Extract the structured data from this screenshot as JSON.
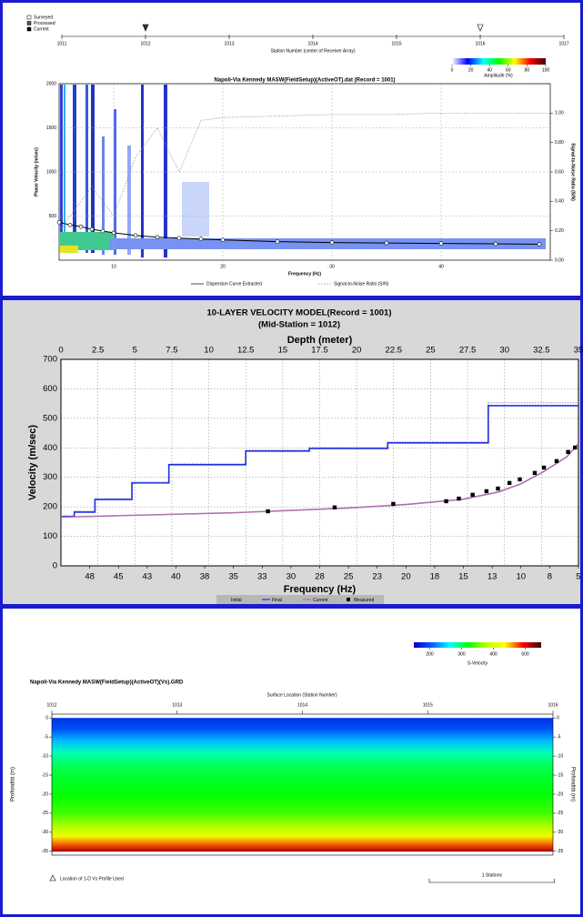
{
  "chart_data": [
    {
      "type": "dispersion",
      "legend": [
        "Surveyed",
        "Processed",
        "Current"
      ],
      "station_axis": {
        "label": "Station Number (center of Receiver Array)",
        "xlim": [
          1011,
          1017
        ],
        "xticks": [
          1011,
          1012,
          1013,
          1014,
          1015,
          1016,
          1017
        ],
        "processed_stations": [
          1012
        ],
        "surveyed_stations": [
          1016
        ]
      },
      "colorbar": {
        "label": "Amplitude (%)",
        "lim": [
          0,
          100
        ],
        "ticks": [
          0,
          20,
          40,
          60,
          80,
          100
        ],
        "colors": [
          "#ffffff",
          "#0000ff",
          "#00ffff",
          "#00ff00",
          "#ffff00",
          "#ff0000",
          "#400000"
        ]
      },
      "title": "Napoli-Via Kennedy MASW(FieldSetup)(ActiveOT).dat (Record = 1001)",
      "xlabel": "Frequency (Hz)",
      "ylabel": "Phase Velocity (m/sec)",
      "y2label": "Signal-to-Noise Ratio (S/N)",
      "xlim": [
        5,
        50
      ],
      "xticks": [
        10,
        20,
        30,
        40
      ],
      "ylim": [
        0,
        2000
      ],
      "yticks": [
        500,
        1000,
        1500,
        2000
      ],
      "y2lim": [
        0,
        1.2
      ],
      "y2ticks": [
        {
          "value": 0,
          "label": "0.00"
        },
        {
          "value": 0.2,
          "label": "0.20"
        },
        {
          "value": 0.4,
          "label": "0.40"
        },
        {
          "value": 0.6,
          "label": "0.60"
        },
        {
          "value": 0.8,
          "label": "0.80"
        },
        {
          "value": 1,
          "label": "1.00"
        }
      ],
      "grid": true,
      "series": [
        {
          "name": "Dispersion Curve Extracted",
          "color": "#000000",
          "x": [
            5,
            6,
            7,
            8,
            9,
            10,
            12,
            14,
            16,
            18,
            20,
            25,
            30,
            35,
            40,
            45,
            49
          ],
          "values": [
            430,
            400,
            380,
            350,
            330,
            310,
            280,
            260,
            250,
            240,
            230,
            210,
            200,
            195,
            190,
            185,
            180
          ]
        },
        {
          "name": "Signal-to-Noise Ratio (S/N)",
          "color": "#909090",
          "axis": "y2",
          "x": [
            5,
            8,
            10,
            12,
            14,
            16,
            18,
            20,
            25,
            30,
            35,
            40,
            45,
            50
          ],
          "values": [
            0.2,
            0.5,
            0.3,
            0.7,
            0.9,
            0.6,
            0.95,
            0.97,
            0.98,
            0.99,
            0.99,
            1,
            1,
            1
          ]
        }
      ]
    },
    {
      "type": "line",
      "title": "10-LAYER VELOCITY MODEL(Record = 1001)",
      "subtitle": "(Mid-Station = 1012)",
      "xlabel": "Depth (meter)",
      "x2label": "Frequency (Hz)",
      "ylabel": "Velocity (m/sec)",
      "xlim": [
        0,
        35
      ],
      "xticks": [
        0,
        2.5,
        5,
        7.5,
        10,
        12.5,
        15,
        17.5,
        20,
        22.5,
        25,
        27.5,
        30,
        32.5,
        35
      ],
      "x2lim": [
        50,
        5
      ],
      "x2ticks": [
        {
          "value": 47.5,
          "label": "48"
        },
        45,
        {
          "value": 42.5,
          "label": "43"
        },
        40,
        {
          "value": 37.5,
          "label": "38"
        },
        35,
        {
          "value": 32.5,
          "label": "33"
        },
        30,
        {
          "value": 27.5,
          "label": "28"
        },
        25,
        {
          "value": 22.5,
          "label": "23"
        },
        20,
        {
          "value": 17.5,
          "label": "18"
        },
        15,
        {
          "value": 12.5,
          "label": "13"
        },
        10,
        {
          "value": 7.5,
          "label": "8"
        },
        5
      ],
      "ylim": [
        0,
        700
      ],
      "yticks": [
        0,
        100,
        200,
        300,
        400,
        500,
        600,
        700
      ],
      "grid": true,
      "series": [
        {
          "name": "Initial",
          "color": "#b0b0c8",
          "style": "dotted",
          "x": [
            0,
            0.9,
            0.9,
            2.3,
            2.3,
            4.8,
            4.8,
            7.3,
            7.3,
            12.5,
            12.5,
            16.8,
            16.8,
            22.1,
            22.1,
            28.9,
            28.9,
            35
          ],
          "values": [
            170,
            170,
            185,
            185,
            228,
            228,
            284,
            284,
            346,
            346,
            392,
            392,
            401,
            401,
            420,
            420,
            553,
            553
          ]
        },
        {
          "name": "Final",
          "color": "#2030e0",
          "style": "solid",
          "x": [
            0,
            0.9,
            0.9,
            2.3,
            2.3,
            4.8,
            4.8,
            7.3,
            7.3,
            12.5,
            12.5,
            16.8,
            16.8,
            22.1,
            22.1,
            28.9,
            28.9,
            35
          ],
          "values": [
            167,
            167,
            182,
            182,
            225,
            225,
            281,
            281,
            343,
            343,
            389,
            389,
            398,
            398,
            417,
            417,
            543,
            543
          ]
        },
        {
          "name": "Current",
          "color": "#b070b0",
          "style": "solid",
          "axis": "x2",
          "x": [
            50,
            45,
            40,
            35,
            30,
            25,
            20,
            15,
            12,
            10,
            8,
            6,
            5
          ],
          "values": [
            165,
            170,
            175,
            180,
            188,
            196,
            208,
            226,
            250,
            278,
            320,
            370,
            415
          ]
        },
        {
          "name": "Measured",
          "color": "#000000",
          "style": "markers",
          "axis": "x2",
          "x": [
            32,
            26.2,
            21.1,
            16.5,
            15.4,
            14.2,
            13,
            12,
            11,
            10.1,
            8.8,
            8,
            6.9,
            5.9,
            5.3
          ],
          "values": [
            185,
            198,
            210,
            219,
            228,
            241,
            253,
            262,
            281,
            293,
            315,
            333,
            355,
            386,
            401
          ]
        }
      ]
    },
    {
      "type": "contour",
      "colorbar": {
        "label": "S-Velocity",
        "lim": [
          150,
          550
        ],
        "ticks": [
          200,
          300,
          400,
          500
        ],
        "colors": [
          "#0000c0",
          "#0060ff",
          "#00ffff",
          "#00ff00",
          "#c0ff00",
          "#ffff00",
          "#ff0000",
          "#400000"
        ]
      },
      "title": "Napoli-Via Kennedy MASW(FieldSetup)(ActiveOT)(Vs).GRD",
      "xlabel": "Surface Location (Station Number)",
      "ylabel": "Profondità (m)",
      "xlim": [
        1012,
        1016
      ],
      "xticks": [
        1012,
        1013,
        1014,
        1015,
        1016
      ],
      "ylim": [
        -36,
        1
      ],
      "yticks": [
        0,
        -5,
        -10,
        -15,
        -20,
        -25,
        -30,
        -35
      ],
      "depths": [
        0,
        -3,
        -6,
        -9,
        -12,
        -15,
        -20,
        -25,
        -28,
        -31,
        -33,
        -35
      ],
      "values": [
        180,
        200,
        240,
        280,
        300,
        310,
        320,
        340,
        370,
        420,
        470,
        520
      ],
      "annotation": "Location of 1-D Vs Profile Used",
      "scale_label": "1 Stations"
    }
  ]
}
